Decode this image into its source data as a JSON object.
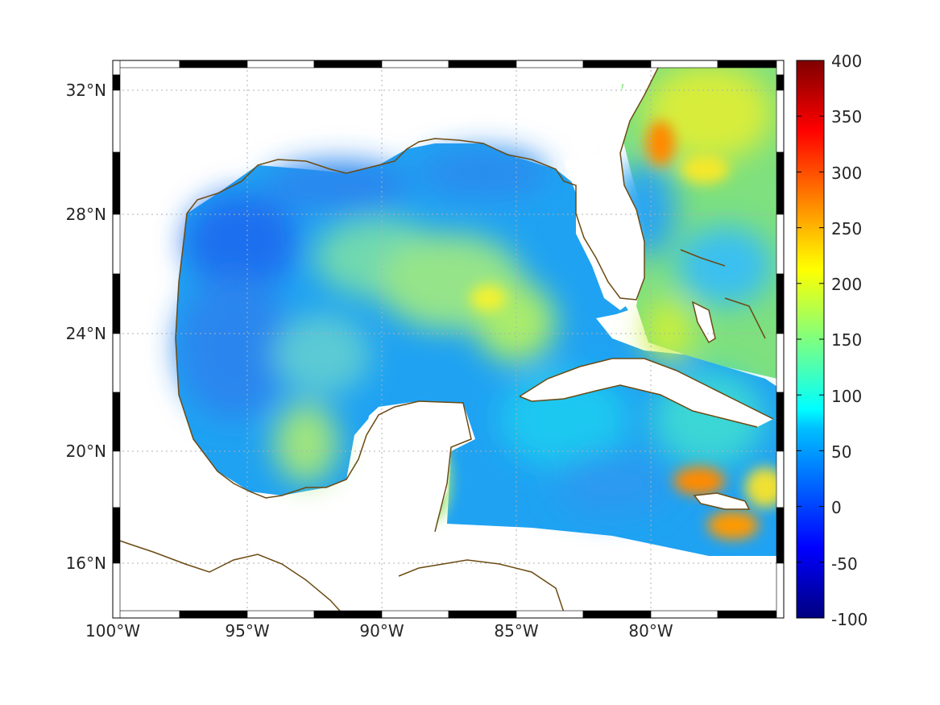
{
  "map": {
    "lon_range": [
      -100,
      -75.1
    ],
    "lat_range": [
      14.2,
      33.0
    ],
    "x_ticks": [
      "100°W",
      "95°W",
      "90°W",
      "85°W",
      "80°W"
    ],
    "y_ticks": [
      "32°N",
      "28°N",
      "24°N",
      "20°N",
      "16°N"
    ],
    "grid": true,
    "frame": "black-white checkered",
    "coastline_color": "#6b4a12",
    "land_color": "#ffffff"
  },
  "colorbar": {
    "ticks": [
      "400",
      "350",
      "300",
      "250",
      "200",
      "150",
      "100",
      "50",
      "0",
      "-50",
      "-100"
    ],
    "range": [
      -100,
      400
    ],
    "colormap": "jet",
    "position": "right"
  }
}
